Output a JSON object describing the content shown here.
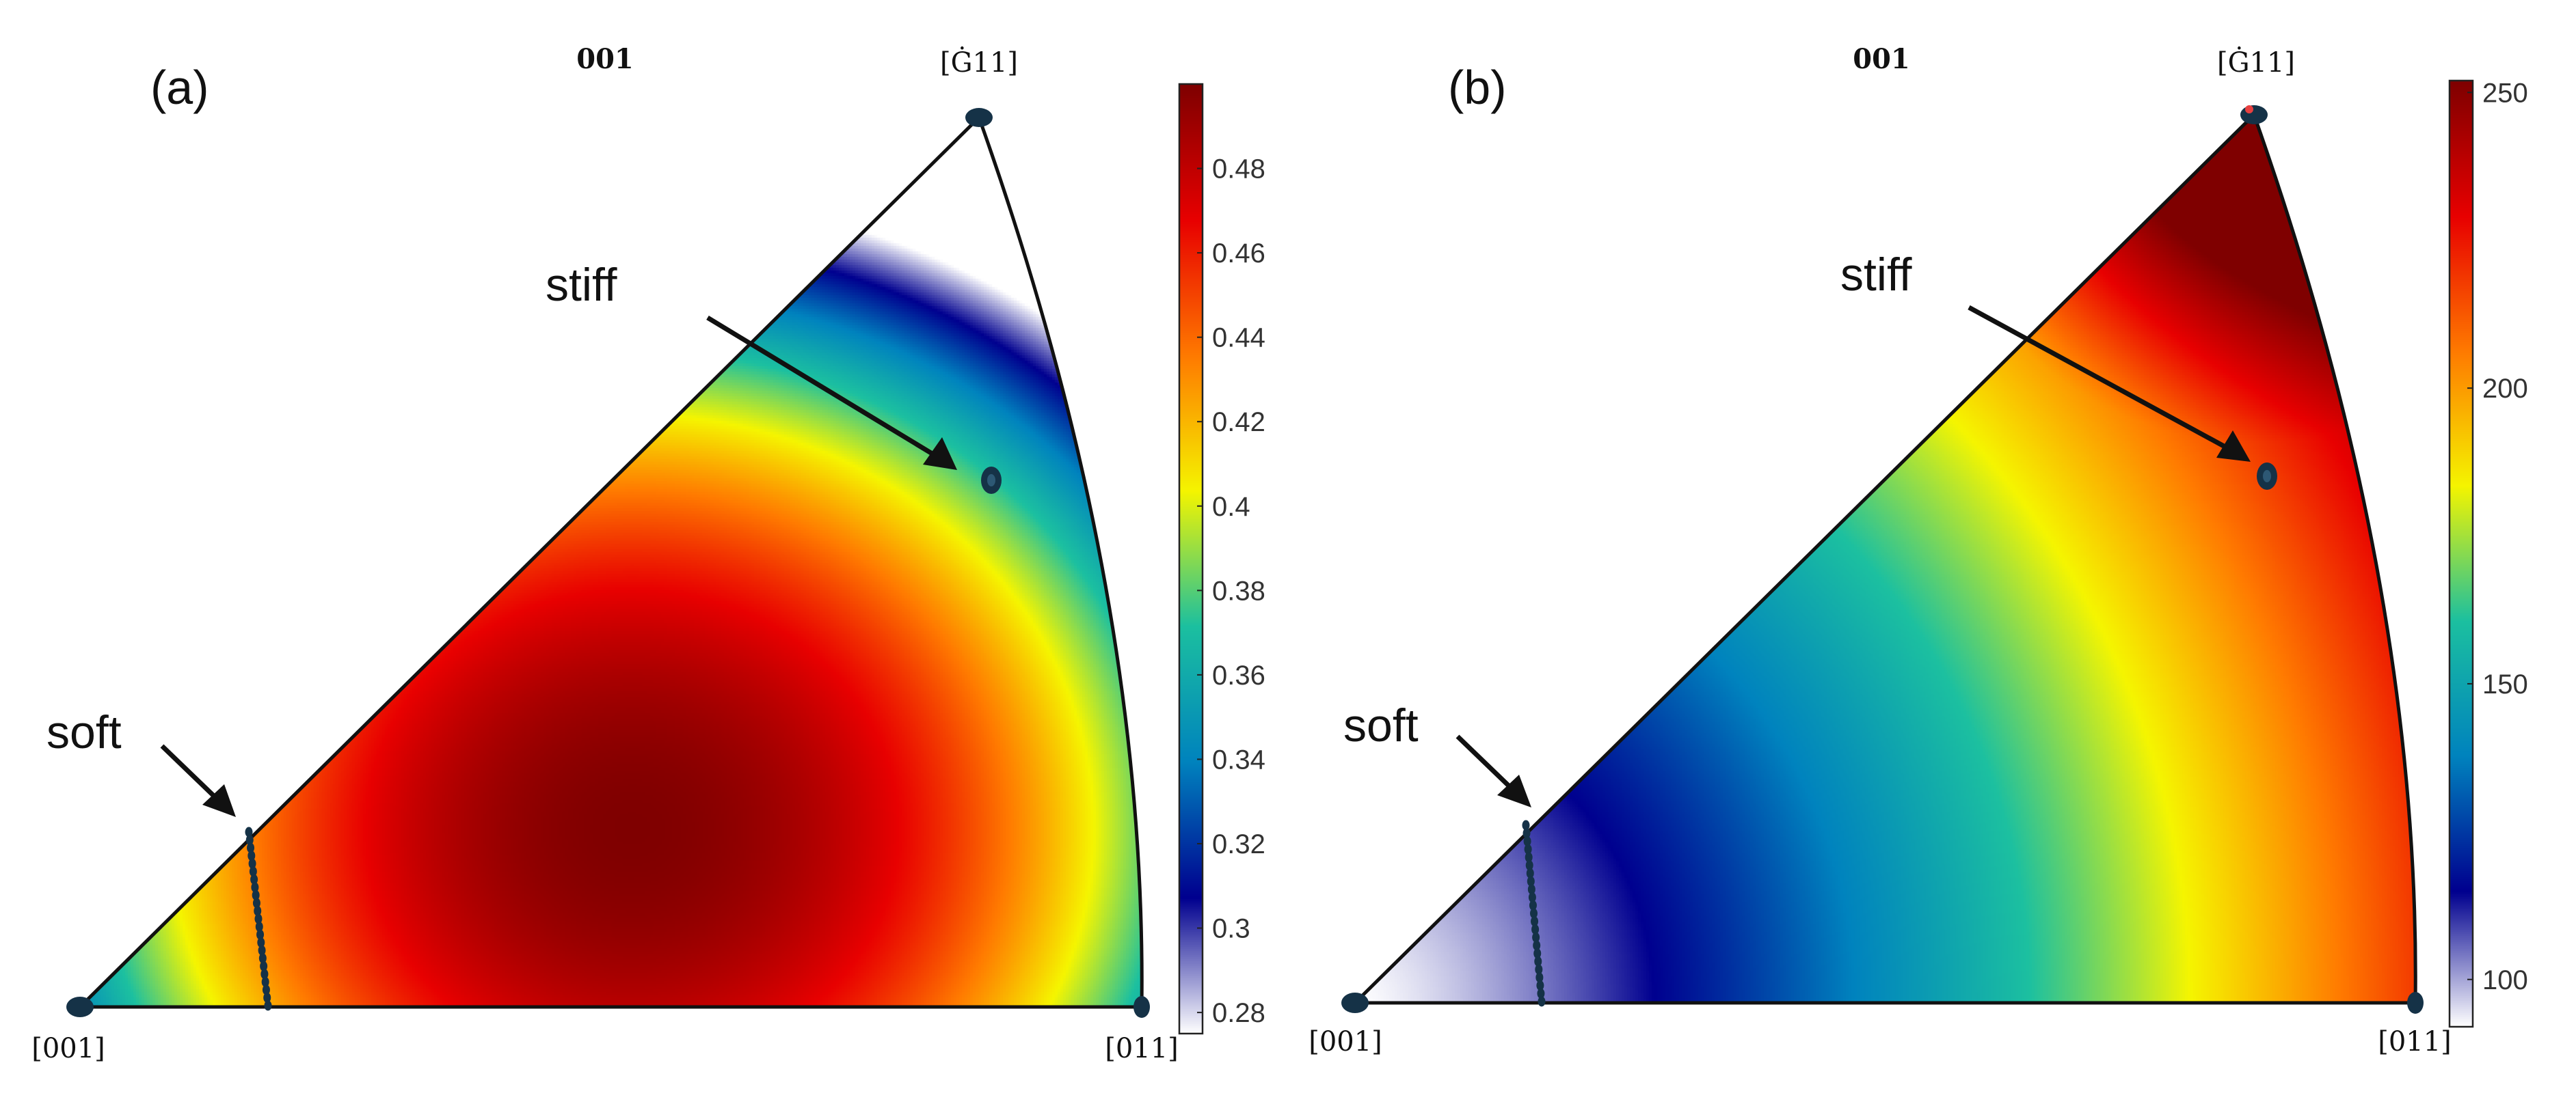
{
  "chart_data": [
    {
      "type": "heatmap",
      "subplot_type": "inverse pole figure",
      "panel_label": "(a)",
      "title": "001",
      "vertex_labels": {
        "bottom_left": "[001]",
        "bottom_right": "[011]",
        "top": "[Ġ11]"
      },
      "colorbar": {
        "ticks": [
          0.28,
          0.3,
          0.32,
          0.34,
          0.36,
          0.38,
          0.4,
          0.42,
          0.44,
          0.46,
          0.48
        ],
        "tick_labels": [
          "0.28",
          "0.3",
          "0.32",
          "0.34",
          "0.36",
          "0.38",
          "0.4",
          "0.42",
          "0.44",
          "0.46",
          "0.48"
        ],
        "range": [
          0.275,
          0.5
        ],
        "colormap": [
          "#ffffff",
          "#00008f",
          "#0083be",
          "#1cc0a0",
          "#f5f500",
          "#ff7a00",
          "#e80000",
          "#7f0000"
        ]
      },
      "field": {
        "max_value": 0.5,
        "min_value": 0.28,
        "max_location": "interior, lower-center",
        "min_location": "[Ġ11] corner"
      },
      "annotations": [
        {
          "text": "stiff",
          "points_to": "marker near [Ġ11]-[011] edge"
        },
        {
          "text": "soft",
          "points_to": "dotted line near [001]"
        }
      ],
      "grid": false
    },
    {
      "type": "heatmap",
      "subplot_type": "inverse pole figure",
      "panel_label": "(b)",
      "title": "001",
      "vertex_labels": {
        "bottom_left": "[001]",
        "bottom_right": "[011]",
        "top": "[Ġ11]"
      },
      "colorbar": {
        "ticks": [
          100,
          150,
          200,
          250
        ],
        "tick_labels": [
          "100",
          "150",
          "200",
          "250"
        ],
        "range": [
          92,
          252
        ],
        "colormap": [
          "#ffffff",
          "#00008f",
          "#0083be",
          "#1cc0a0",
          "#f5f500",
          "#ff7a00",
          "#e80000",
          "#7f0000"
        ]
      },
      "field": {
        "max_value": 252,
        "min_value": 92,
        "max_location": "[Ġ11] corner",
        "min_location": "[001] corner"
      },
      "annotations": [
        {
          "text": "stiff",
          "points_to": "marker near [Ġ11]-[011] edge"
        },
        {
          "text": "soft",
          "points_to": "dotted line near [001]"
        }
      ],
      "grid": false
    }
  ]
}
